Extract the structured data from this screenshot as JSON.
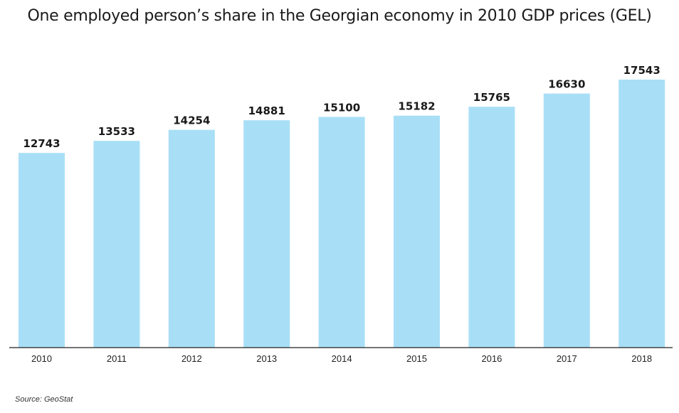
{
  "chart_data": {
    "type": "bar",
    "title": "One employed person’s share in the Georgian economy in 2010 GDP prices (GEL)",
    "xlabel": "",
    "ylabel": "",
    "categories": [
      "2010",
      "2011",
      "2012",
      "2013",
      "2014",
      "2015",
      "2016",
      "2017",
      "2018"
    ],
    "values": [
      12743,
      13533,
      14254,
      14881,
      15100,
      15182,
      15765,
      16630,
      17543
    ],
    "data_labels": [
      "12743",
      "13533",
      "14254",
      "14881",
      "15100",
      "15182",
      "15765",
      "16630",
      "17543"
    ],
    "ylim": [
      0,
      17543
    ],
    "grid": false,
    "legend": "none",
    "bar_color": "#a8dff7",
    "source": "Source: GeoStat"
  }
}
